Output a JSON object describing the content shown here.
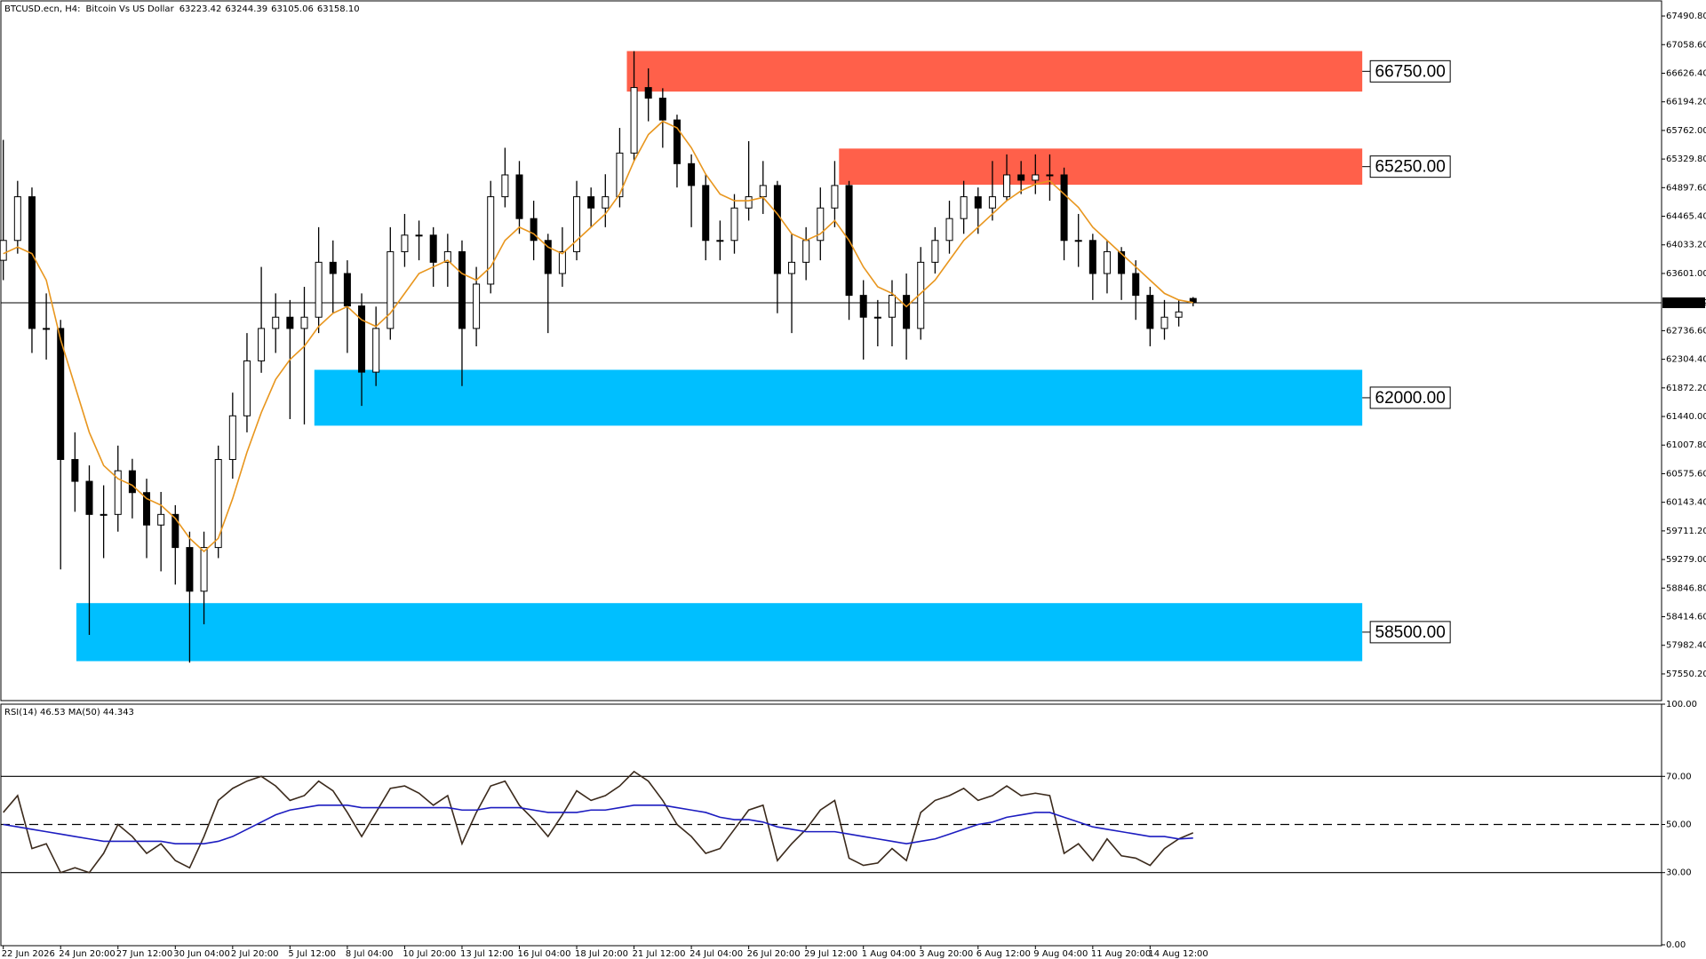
{
  "chart_data": [
    {
      "type": "candlestick",
      "symbol": "BTCUSD.ecn, H4:",
      "description": "Bitcoin Vs US Dollar",
      "ohlc_labels": [
        "63223.42",
        "63244.39",
        "63105.06",
        "63158.10"
      ],
      "open": [
        63800,
        64100,
        64760,
        62770,
        62770,
        60790,
        60460,
        59960,
        59960,
        60620,
        60290,
        59800,
        59960,
        59460,
        58800,
        59460,
        60790,
        61450,
        62280,
        62770,
        62940,
        62770,
        62940,
        63770,
        63600,
        63110,
        62110,
        62770,
        63930,
        64180,
        64180,
        63770,
        63930,
        62770,
        63440,
        64760,
        65090,
        64430,
        64100,
        63600,
        63930,
        64760,
        64590,
        64760,
        65420,
        66410,
        66250,
        65920,
        65260,
        64930,
        64100,
        64100,
        64590,
        64760,
        64930,
        63600,
        63770,
        64100,
        64590,
        64930,
        63270,
        62940,
        62940,
        63270,
        62770,
        63770,
        64100,
        64430,
        64760,
        64590,
        64760,
        65090,
        65010,
        65090,
        65090,
        64100,
        64100,
        63600,
        63930,
        63600,
        63270,
        62770,
        62940,
        63223.42
      ],
      "high": [
        65620,
        65000,
        64900,
        63300,
        62900,
        61200,
        60700,
        60400,
        61000,
        60800,
        60500,
        60300,
        60100,
        59700,
        59700,
        61000,
        61800,
        62700,
        63700,
        63300,
        63200,
        63400,
        64300,
        64100,
        63800,
        63300,
        63100,
        64300,
        64500,
        64400,
        64300,
        64200,
        64100,
        63700,
        65000,
        65500,
        65300,
        64700,
        64200,
        64300,
        65000,
        64900,
        65100,
        65800,
        66960,
        66700,
        66400,
        66000,
        65400,
        65100,
        64400,
        64800,
        65600,
        65300,
        65000,
        64200,
        64300,
        64900,
        65300,
        65000,
        63500,
        63200,
        63500,
        63600,
        64000,
        64300,
        64700,
        65000,
        64900,
        65300,
        65400,
        65300,
        65400,
        65400,
        65200,
        64500,
        64200,
        64100,
        64000,
        63800,
        63400,
        63200,
        63200,
        63244.39
      ],
      "low": [
        63500,
        63900,
        62400,
        62300,
        59130,
        60000,
        58140,
        59300,
        59700,
        59900,
        59300,
        59100,
        58900,
        57720,
        58300,
        59300,
        60500,
        61200,
        62100,
        62400,
        61400,
        61320,
        62700,
        63000,
        62400,
        61600,
        61900,
        62600,
        63700,
        63800,
        63400,
        63400,
        61900,
        62500,
        63300,
        64600,
        64200,
        63800,
        62700,
        63400,
        63800,
        64300,
        64300,
        64600,
        65300,
        65900,
        65500,
        64900,
        64300,
        63800,
        63800,
        63900,
        64400,
        64500,
        63000,
        62700,
        63500,
        63800,
        64300,
        62900,
        62300,
        62500,
        62500,
        62300,
        62600,
        63600,
        63900,
        64200,
        64200,
        64400,
        64700,
        64800,
        64800,
        64700,
        63800,
        63700,
        63200,
        63300,
        63200,
        62900,
        62500,
        62600,
        62800,
        63105.06
      ],
      "close": [
        64100,
        64760,
        62770,
        62770,
        60790,
        60460,
        59960,
        59960,
        60620,
        60290,
        59800,
        59960,
        59460,
        58800,
        59460,
        60790,
        61450,
        62280,
        62770,
        62940,
        62770,
        62940,
        63770,
        63600,
        63110,
        62110,
        62770,
        63930,
        64180,
        64180,
        63770,
        63930,
        62770,
        63440,
        64760,
        65090,
        64430,
        64100,
        63600,
        63930,
        64760,
        64590,
        64760,
        65420,
        66410,
        66250,
        65920,
        65260,
        64930,
        64100,
        64100,
        64590,
        64760,
        64930,
        63600,
        63770,
        64100,
        64590,
        64930,
        63270,
        62940,
        62940,
        63270,
        62770,
        63770,
        64100,
        64430,
        64760,
        64590,
        64760,
        65090,
        65010,
        65090,
        65090,
        64100,
        64100,
        63600,
        63930,
        63600,
        63270,
        62770,
        62940,
        63020,
        63158.1
      ],
      "ma_line": {
        "color": "#e8961e",
        "values": [
          63900,
          64000,
          63900,
          63500,
          62600,
          61900,
          61200,
          60700,
          60500,
          60400,
          60200,
          60100,
          59900,
          59600,
          59400,
          59600,
          60200,
          60900,
          61500,
          62000,
          62300,
          62500,
          62800,
          63000,
          63100,
          62900,
          62800,
          63000,
          63300,
          63600,
          63700,
          63800,
          63600,
          63500,
          63700,
          64100,
          64300,
          64200,
          64000,
          63900,
          64100,
          64300,
          64500,
          64800,
          65300,
          65700,
          65900,
          65800,
          65500,
          65100,
          64800,
          64700,
          64700,
          64750,
          64500,
          64200,
          64100,
          64200,
          64400,
          64100,
          63700,
          63400,
          63300,
          63100,
          63300,
          63500,
          63800,
          64100,
          64300,
          64500,
          64700,
          64850,
          64950,
          65000,
          64800,
          64600,
          64300,
          64100,
          63900,
          63700,
          63500,
          63300,
          63200,
          63160
        ]
      },
      "current_price": 63158.32,
      "zones": [
        {
          "label": "66750.00",
          "high": 66961,
          "low": 66349,
          "start": 43.5,
          "color": "#ff604a"
        },
        {
          "label": "65250.00",
          "high": 65488,
          "low": 64942,
          "start": 58.3,
          "color": "#ff604a"
        },
        {
          "label": "62000.00",
          "high": 62145,
          "low": 61301,
          "start": 21.7,
          "color": "#00bfff"
        },
        {
          "label": "58500.00",
          "high": 58620,
          "low": 57743,
          "start": 5.1,
          "color": "#00bfff"
        }
      ],
      "ylim": [
        57147,
        67706
      ],
      "yticks": [
        {
          "value": 67490.8,
          "label": "67490.80"
        },
        {
          "value": 67058.6,
          "label": "67058.60"
        },
        {
          "value": 66626.4,
          "label": "66626.40"
        },
        {
          "value": 66194.2,
          "label": "66194.20"
        },
        {
          "value": 65762,
          "label": "65762.00"
        },
        {
          "value": 65329.8,
          "label": "65329.80"
        },
        {
          "value": 64897.6,
          "label": "64897.60"
        },
        {
          "value": 64465.4,
          "label": "64465.40"
        },
        {
          "value": 64033.2,
          "label": "64033.20"
        },
        {
          "value": 63601,
          "label": "63601.00"
        },
        {
          "value": 62736.6,
          "label": "62736.60"
        },
        {
          "value": 62304.4,
          "label": "62304.40"
        },
        {
          "value": 61872.2,
          "label": "61872.20"
        },
        {
          "value": 61440,
          "label": "61440.00"
        },
        {
          "value": 61007.8,
          "label": "61007.80"
        },
        {
          "value": 60575.6,
          "label": "60575.60"
        },
        {
          "value": 60143.4,
          "label": "60143.40"
        },
        {
          "value": 59711.2,
          "label": "59711.20"
        },
        {
          "value": 59279,
          "label": "59279.00"
        },
        {
          "value": 58846.8,
          "label": "58846.80"
        },
        {
          "value": 58414.6,
          "label": "58414.60"
        },
        {
          "value": 57982.4,
          "label": "57982.40"
        },
        {
          "value": 57550.2,
          "label": "57550.20"
        }
      ]
    },
    {
      "type": "line",
      "title": "RSI(14) 46.53 MA(50) 44.343",
      "series": [
        {
          "color": "#3b2a1c",
          "values": [
            55,
            62,
            40,
            42,
            30,
            32,
            30,
            38,
            50,
            45,
            38,
            42,
            35,
            32,
            45,
            60,
            65,
            68,
            70,
            66,
            60,
            62,
            68,
            64,
            55,
            45,
            55,
            65,
            66,
            63,
            58,
            62,
            42,
            55,
            66,
            68,
            58,
            52,
            45,
            54,
            64,
            60,
            62,
            66,
            72,
            68,
            60,
            50,
            45,
            38,
            40,
            48,
            56,
            58,
            35,
            42,
            48,
            56,
            60,
            36,
            33,
            34,
            40,
            35,
            55,
            60,
            62,
            65,
            60,
            62,
            66,
            62,
            63,
            62,
            38,
            42,
            35,
            44,
            37,
            36,
            33,
            40,
            44,
            46.53
          ]
        },
        {
          "color": "#1c1cc0",
          "values": [
            50,
            49,
            48,
            47,
            46,
            45,
            44,
            43,
            43,
            43,
            43,
            43,
            42,
            42,
            42,
            43,
            45,
            48,
            51,
            54,
            56,
            57,
            58,
            58,
            58,
            57,
            57,
            57,
            57,
            57,
            57,
            57,
            56,
            56,
            57,
            57,
            57,
            56,
            55,
            55,
            55,
            56,
            56,
            57,
            58,
            58,
            58,
            57,
            56,
            55,
            53,
            52,
            52,
            51,
            49,
            48,
            47,
            47,
            47,
            46,
            45,
            44,
            43,
            42,
            43,
            44,
            46,
            48,
            50,
            51,
            53,
            54,
            55,
            55,
            53,
            51,
            49,
            48,
            47,
            46,
            45,
            45,
            44,
            44.343
          ]
        }
      ],
      "levels": [
        {
          "value": 70,
          "dash": false
        },
        {
          "value": 50,
          "dash": true
        },
        {
          "value": 30,
          "dash": false
        }
      ],
      "ylim": [
        0,
        100
      ],
      "yticks": [
        {
          "value": 100,
          "label": "100.00"
        },
        {
          "value": 70,
          "label": "70.00"
        },
        {
          "value": 50,
          "label": "50.00"
        },
        {
          "value": 30,
          "label": "30.00"
        },
        {
          "value": 0,
          "label": "0.00"
        }
      ],
      "xticks": [
        {
          "value": 0,
          "label": "22 Jun 2026"
        },
        {
          "value": 4,
          "label": "24 Jun 20:00"
        },
        {
          "value": 8,
          "label": "27 Jun 12:00"
        },
        {
          "value": 12,
          "label": "30 Jun 04:00"
        },
        {
          "value": 16,
          "label": "2 Jul 20:00"
        },
        {
          "value": 20,
          "label": "5 Jul 12:00"
        },
        {
          "value": 24,
          "label": "8 Jul 04:00"
        },
        {
          "value": 28,
          "label": "10 Jul 20:00"
        },
        {
          "value": 32,
          "label": "13 Jul 12:00"
        },
        {
          "value": 36,
          "label": "16 Jul 04:00"
        },
        {
          "value": 40,
          "label": "18 Jul 20:00"
        },
        {
          "value": 44,
          "label": "21 Jul 12:00"
        },
        {
          "value": 48,
          "label": "24 Jul 04:00"
        },
        {
          "value": 52,
          "label": "26 Jul 20:00"
        },
        {
          "value": 56,
          "label": "29 Jul 12:00"
        },
        {
          "value": 60,
          "label": "1 Aug 04:00"
        },
        {
          "value": 64,
          "label": "3 Aug 20:00"
        },
        {
          "value": 68,
          "label": "6 Aug 12:00"
        },
        {
          "value": 72,
          "label": "9 Aug 04:00"
        },
        {
          "value": 76,
          "label": "11 Aug 20:00"
        },
        {
          "value": 80,
          "label": "14 Aug 12:00"
        }
      ]
    }
  ]
}
